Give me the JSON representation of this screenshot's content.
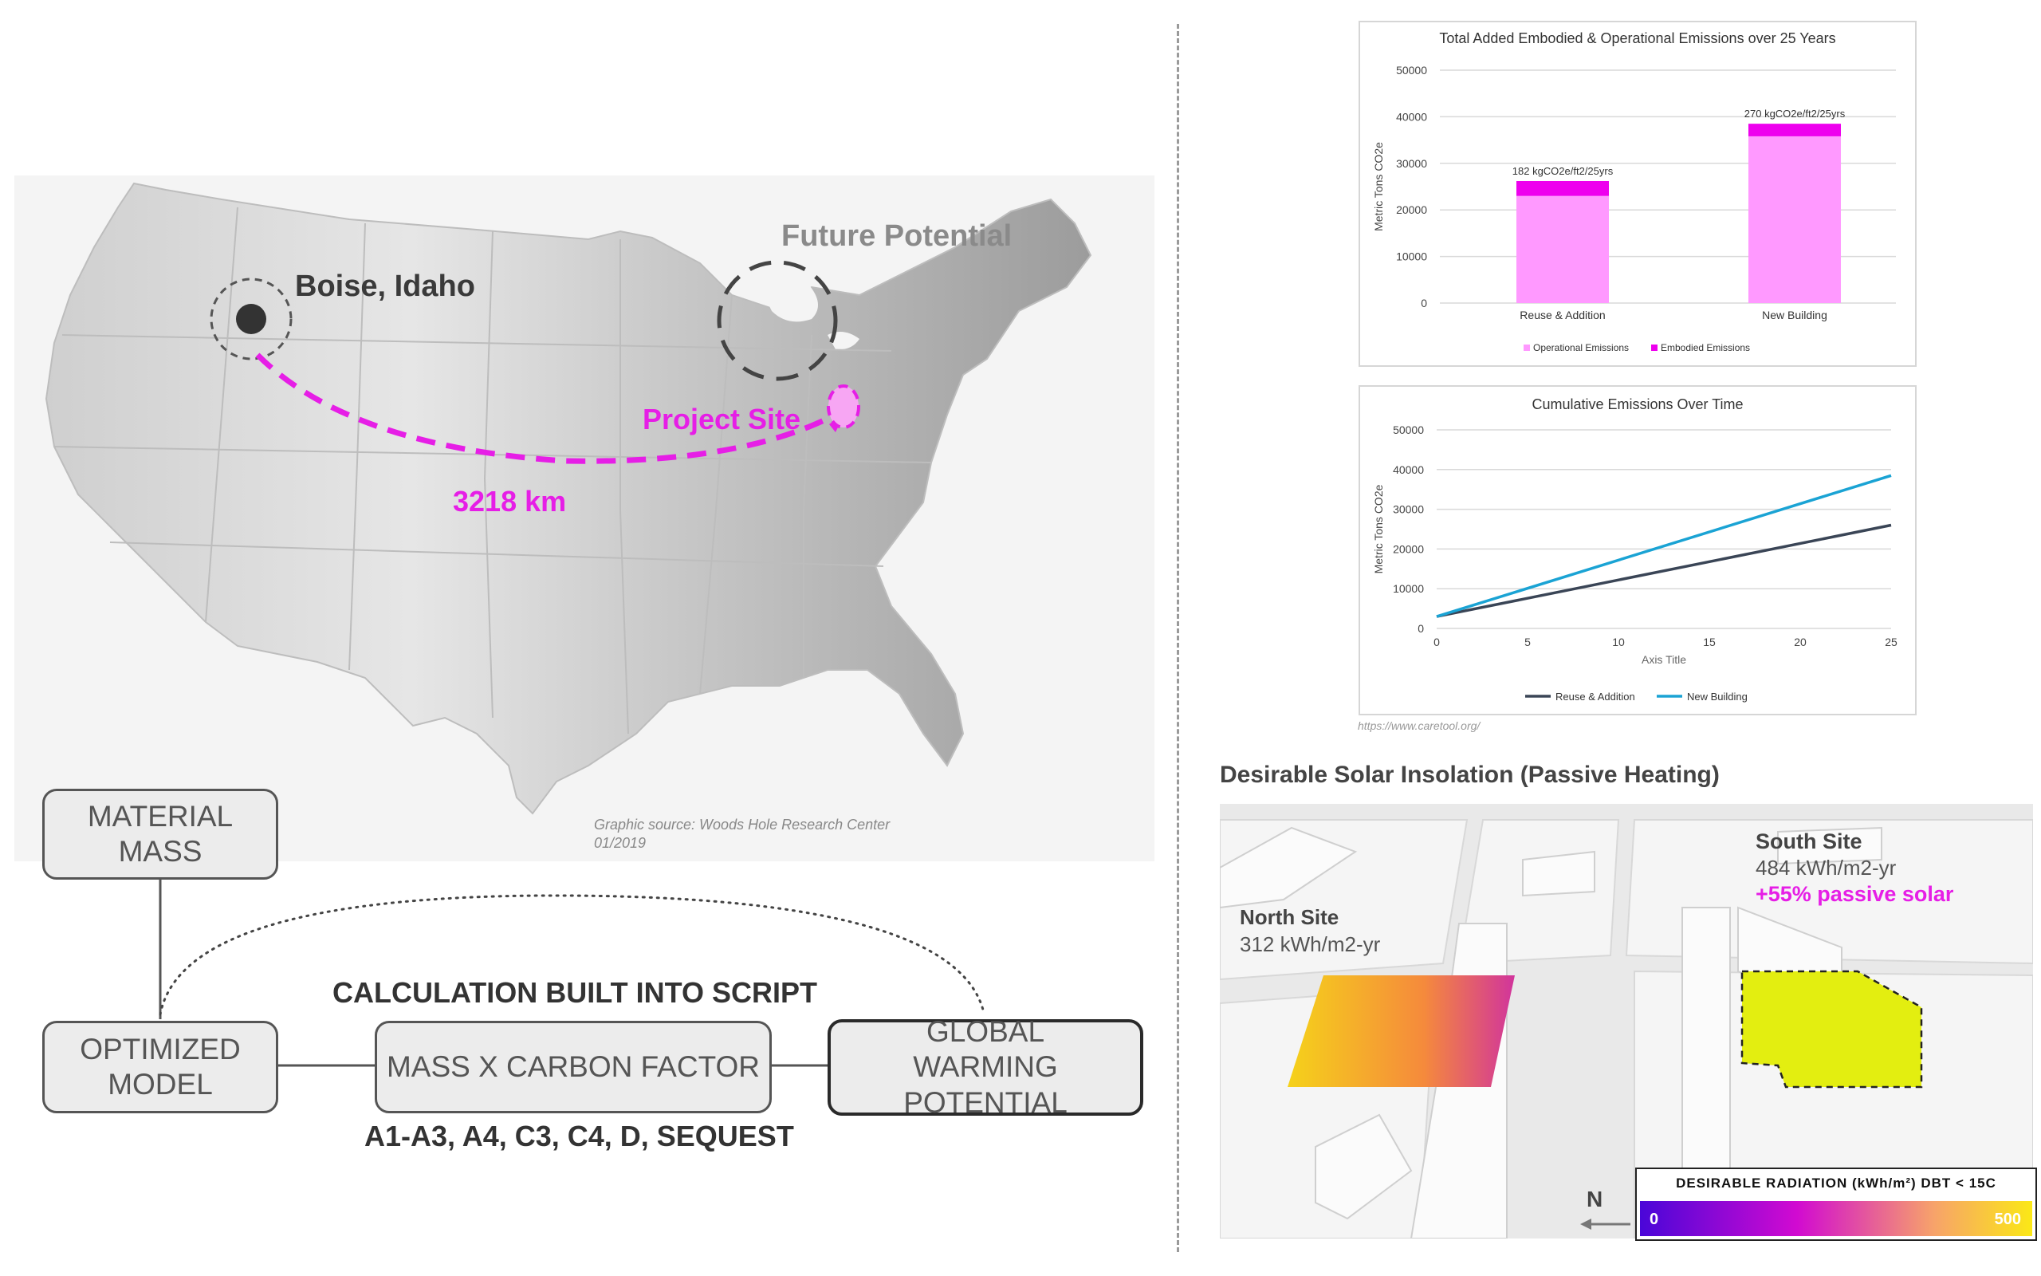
{
  "map": {
    "boise_label": "Boise, Idaho",
    "future_label": "Future Potential",
    "project_label": "Project Site",
    "distance_label": "3218 km",
    "source_line1": "Graphic source: Woods Hole Research Center",
    "source_line2": "01/2019",
    "colors": {
      "accent": "#e61ee6",
      "dark": "#3a3a3a"
    }
  },
  "flow": {
    "material_mass": "MATERIAL MASS",
    "optimized_model": "OPTIMIZED MODEL",
    "carbon_factor": "MASS X CARBON FACTOR",
    "gwp": "GLOBAL WARMING POTENTIAL",
    "calc_title": "CALCULATION BUILT INTO SCRIPT",
    "stages": "A1-A3, A4, C3, C4, D, SEQUEST"
  },
  "chart_data": [
    {
      "type": "bar",
      "title": "Total Added Embodied & Operational Emissions over 25 Years",
      "ylabel": "Metric Tons CO2e",
      "categories": [
        "Reuse & Addition",
        "New Building"
      ],
      "series": [
        {
          "name": "Operational Emissions",
          "values": [
            23000,
            35800
          ],
          "color": "#ff99ff"
        },
        {
          "name": "Embodied Emissions",
          "values": [
            3200,
            2700
          ],
          "color": "#ee00ee"
        }
      ],
      "data_labels": [
        "182 kgCO2e/ft2/25yrs",
        "270 kgCO2e/ft2/25yrs"
      ],
      "ylim": [
        0,
        50000
      ],
      "yticks": [
        "0",
        "10000",
        "20000",
        "30000",
        "40000",
        "50000"
      ],
      "grid": true,
      "legend": "bottom"
    },
    {
      "type": "line",
      "title": "Cumulative Emissions Over Time",
      "xlabel": "Axis Title",
      "ylabel": "Metric Tons CO2e",
      "x": [
        0,
        25
      ],
      "series": [
        {
          "name": "Reuse & Addition",
          "values": [
            3000,
            26000
          ],
          "color": "#3a4556"
        },
        {
          "name": "New Building",
          "values": [
            3000,
            38500
          ],
          "color": "#1aa3d4"
        }
      ],
      "xlim": [
        0,
        25
      ],
      "ylim": [
        0,
        50000
      ],
      "xticks": [
        "0",
        "5",
        "10",
        "15",
        "20",
        "25"
      ],
      "yticks": [
        "0",
        "10000",
        "20000",
        "30000",
        "40000",
        "50000"
      ],
      "grid": true,
      "legend": "bottom"
    }
  ],
  "chart_source": "https://www.caretool.org/",
  "solar": {
    "title": "Desirable Solar Insolation (Passive Heating)",
    "north_name": "North Site",
    "north_value": "312 kWh/m2-yr",
    "south_name": "South Site",
    "south_value": "484 kWh/m2-yr",
    "south_gain": "+55% passive solar",
    "north_arrow": "N",
    "legend_title": "DESIRABLE RADIATION (kWh/m²) DBT < 15C",
    "legend_min": "0",
    "legend_max": "500"
  }
}
